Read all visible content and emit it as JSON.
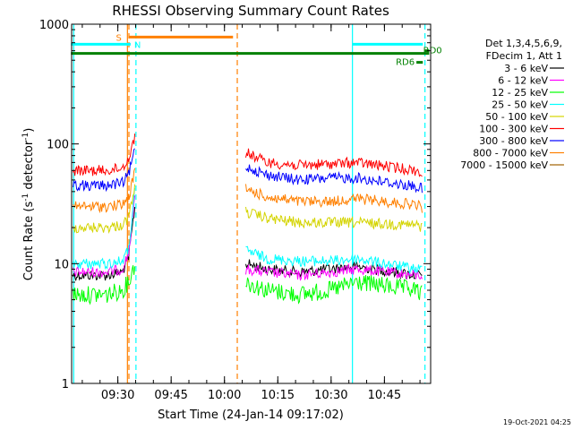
{
  "chart_data": {
    "type": "line",
    "title": "RHESSI Observing Summary Count Rates",
    "xlabel": "Start Time (24-Jan-14 09:17:02)",
    "ylabel_main": "Count Rate (s",
    "ylabel_sup1": "-1",
    "ylabel_mid": " detector",
    "ylabel_sup2": "-1",
    "ylabel_end": ")",
    "yscale": "log",
    "ylim": [
      1,
      1000
    ],
    "xlim_minutes": [
      9.28333,
      10.96667
    ],
    "x_ticks": [
      {
        "t": 9.5,
        "label": "09:30"
      },
      {
        "t": 9.75,
        "label": "09:45"
      },
      {
        "t": 10.0,
        "label": "10:00"
      },
      {
        "t": 10.25,
        "label": "10:15"
      },
      {
        "t": 10.5,
        "label": "10:30"
      },
      {
        "t": 10.75,
        "label": "10:45"
      }
    ],
    "y_ticks": [
      {
        "v": 1,
        "label": "1"
      },
      {
        "v": 10,
        "label": "10"
      },
      {
        "v": 100,
        "label": "100"
      },
      {
        "v": 1000,
        "label": "1000"
      }
    ],
    "legend_title_1": "Det 1,3,4,5,6,9,",
    "legend_title_2": "FDecim 1, Att 1",
    "legend_position": "right",
    "series": [
      {
        "name": "3 - 6 keV",
        "color": "#000000",
        "segments": [
          {
            "x": [
              9.29,
              9.45,
              9.52,
              9.55,
              9.58
            ],
            "y": [
              8,
              8,
              8.5,
              11,
              30
            ]
          },
          {
            "x": [
              10.1,
              10.2,
              10.35,
              10.5,
              10.62,
              10.9,
              10.93
            ],
            "y": [
              10,
              9,
              8.5,
              9,
              9.5,
              8,
              8
            ]
          }
        ]
      },
      {
        "name": "6 - 12 keV",
        "color": "#ff00ff",
        "segments": [
          {
            "x": [
              9.29,
              9.45,
              9.52,
              9.55,
              9.58
            ],
            "y": [
              8.5,
              8.5,
              9,
              12,
              35
            ]
          },
          {
            "x": [
              10.1,
              10.2,
              10.35,
              10.5,
              10.62,
              10.9,
              10.93
            ],
            "y": [
              9,
              8.5,
              8,
              8.5,
              9,
              8,
              8
            ]
          }
        ]
      },
      {
        "name": "12 - 25 keV",
        "color": "#00ff00",
        "segments": [
          {
            "x": [
              9.29,
              9.45,
              9.52,
              9.55,
              9.58
            ],
            "y": [
              5.5,
              5.5,
              6,
              7,
              10
            ]
          },
          {
            "x": [
              10.1,
              10.2,
              10.35,
              10.5,
              10.62,
              10.9,
              10.93
            ],
            "y": [
              7,
              6,
              5.5,
              6,
              7,
              6,
              5.5
            ]
          }
        ]
      },
      {
        "name": "25 - 50 keV",
        "color": "#00ffff",
        "segments": [
          {
            "x": [
              9.29,
              9.45,
              9.52,
              9.55,
              9.58
            ],
            "y": [
              10,
              10,
              10.5,
              13,
              40
            ]
          },
          {
            "x": [
              10.1,
              10.2,
              10.35,
              10.5,
              10.62,
              10.9,
              10.93
            ],
            "y": [
              13,
              11,
              10.5,
              10.5,
              11,
              9,
              9
            ]
          }
        ]
      },
      {
        "name": "50 - 100 keV",
        "color": "#d4d400",
        "segments": [
          {
            "x": [
              9.29,
              9.45,
              9.52,
              9.55,
              9.58
            ],
            "y": [
              20,
              20,
              21,
              24,
              45
            ]
          },
          {
            "x": [
              10.1,
              10.2,
              10.35,
              10.5,
              10.62,
              10.9,
              10.93
            ],
            "y": [
              27,
              24,
              22,
              22,
              22,
              21,
              20
            ]
          }
        ]
      },
      {
        "name": "100 - 300 keV",
        "color": "#ff0000",
        "segments": [
          {
            "x": [
              9.29,
              9.45,
              9.52,
              9.55,
              9.58
            ],
            "y": [
              60,
              60,
              63,
              75,
              115
            ]
          },
          {
            "x": [
              10.1,
              10.2,
              10.35,
              10.5,
              10.62,
              10.9,
              10.93
            ],
            "y": [
              85,
              70,
              66,
              68,
              70,
              60,
              55
            ]
          }
        ]
      },
      {
        "name": "300 - 800 keV",
        "color": "#0000ff",
        "segments": [
          {
            "x": [
              9.29,
              9.45,
              9.52,
              9.55,
              9.58
            ],
            "y": [
              45,
              45,
              47,
              55,
              90
            ]
          },
          {
            "x": [
              10.1,
              10.2,
              10.35,
              10.5,
              10.62,
              10.9,
              10.93
            ],
            "y": [
              65,
              55,
              50,
              52,
              52,
              44,
              42
            ]
          }
        ]
      },
      {
        "name": "800 - 7000 keV",
        "color": "#ff8000",
        "segments": [
          {
            "x": [
              9.29,
              9.45,
              9.52,
              9.55,
              9.58
            ],
            "y": [
              30,
              30,
              31,
              35,
              60
            ]
          },
          {
            "x": [
              10.1,
              10.2,
              10.35,
              10.5,
              10.62,
              10.9,
              10.93
            ],
            "y": [
              42,
              36,
              33,
              33,
              35,
              31,
              29
            ]
          }
        ]
      },
      {
        "name": "7000 - 15000 keV",
        "color": "#a06000",
        "segments": []
      }
    ],
    "top_bars": [
      {
        "label": "S",
        "color": "#ff8000",
        "y": 780,
        "x0": 9.55,
        "x1": 10.04
      },
      {
        "label": "N",
        "color": "#00ffff",
        "y": 680,
        "x0": 9.28,
        "x1": 9.56
      },
      {
        "label": "",
        "color": "#00ffff",
        "y": 680,
        "x0": 10.6,
        "x1": 10.93
      },
      {
        "label": "",
        "color": "#008000",
        "y": 570,
        "x0": 9.28,
        "x1": 10.96
      },
      {
        "label": "RD6",
        "color": "#008000",
        "y": 480,
        "x0": 10.9,
        "x1": 10.93
      },
      {
        "label": "RD0",
        "color": "#008000",
        "y": 600,
        "x0": 10.94,
        "x1": 10.96
      }
    ],
    "vertical_lines": [
      {
        "t": 9.293,
        "color": "#00ffff",
        "style": "solid"
      },
      {
        "t": 9.545,
        "color": "#ff8000",
        "style": "solid"
      },
      {
        "t": 9.552,
        "color": "#ff8000",
        "style": "dashed"
      },
      {
        "t": 9.585,
        "color": "#00ffff",
        "style": "dashed"
      },
      {
        "t": 10.06,
        "color": "#ff8000",
        "style": "dashed"
      },
      {
        "t": 10.6,
        "color": "#00ffff",
        "style": "solid"
      },
      {
        "t": 10.94,
        "color": "#00ffff",
        "style": "dashed"
      }
    ],
    "timestamp": "19-Oct-2021 04:25"
  }
}
